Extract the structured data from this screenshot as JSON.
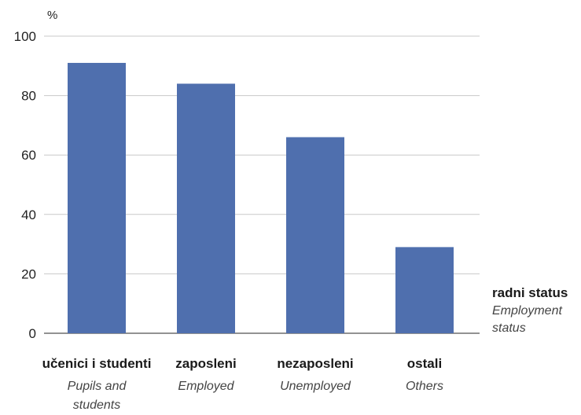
{
  "chart_data": {
    "type": "bar",
    "ylabel": "%",
    "ylim": [
      0,
      100
    ],
    "yticks": [
      0,
      20,
      40,
      60,
      80,
      100
    ],
    "grid": true,
    "bar_color": "#4f6fae",
    "xlabel": {
      "main": "radni status",
      "sub_lines": [
        "Employment",
        "status"
      ]
    },
    "categories": [
      {
        "main": "učenici i studenti",
        "sub_lines": [
          "Pupils and",
          "students"
        ],
        "value": 91
      },
      {
        "main": "zaposleni",
        "sub_lines": [
          "Employed"
        ],
        "value": 84
      },
      {
        "main": "nezaposleni",
        "sub_lines": [
          "Unemployed"
        ],
        "value": 66
      },
      {
        "main": "ostali",
        "sub_lines": [
          "Others"
        ],
        "value": 29
      }
    ]
  }
}
